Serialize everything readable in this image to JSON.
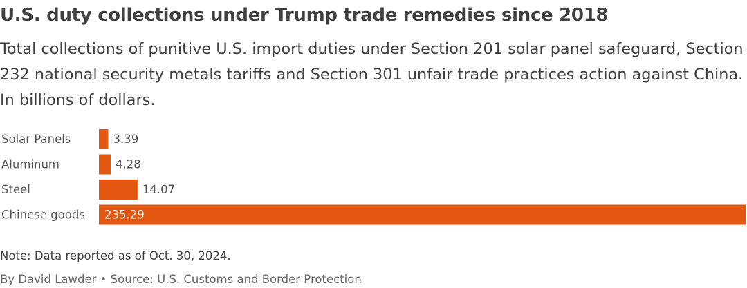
{
  "header": {
    "title": "U.S. duty collections under Trump trade remedies since 2018",
    "subtitle": "Total collections of punitive U.S. import duties under Section 201 solar panel safeguard, Section 232 national security metals tariffs and Section 301 unfair trade practices action against China. In billions of dollars."
  },
  "chart_data": {
    "type": "bar",
    "orientation": "horizontal",
    "title": "U.S. duty collections under Trump trade remedies since 2018",
    "categories": [
      "Solar Panels",
      "Aluminum",
      "Steel",
      "Chinese goods"
    ],
    "values": [
      3.39,
      4.28,
      14.07,
      235.29
    ],
    "value_labels": [
      "3.39",
      "4.28",
      "14.07",
      "235.29"
    ],
    "xlim": [
      0,
      235.29
    ],
    "grid": false,
    "legend": "none",
    "colors": {
      "bar": "#E35711",
      "label": "#555555",
      "value_outside": "#555555",
      "value_inside": "#ffffff"
    }
  },
  "footer": {
    "note": "Note: Data reported as of Oct. 30, 2024.",
    "source": "By David Lawder • Source: U.S. Customs and Border Protection"
  }
}
